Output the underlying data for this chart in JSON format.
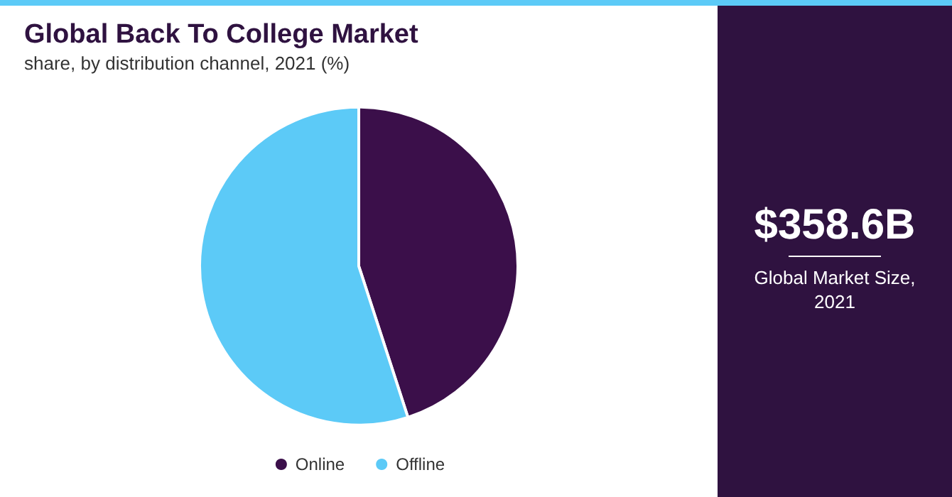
{
  "chart_data": {
    "type": "pie",
    "title": "Global Back To College Market",
    "subtitle": "share, by distribution channel, 2021 (%)",
    "categories": [
      "Online",
      "Offline"
    ],
    "values": [
      45,
      55
    ],
    "colors": [
      "#3b0f4a",
      "#5ccaf7"
    ],
    "legend": "bottom",
    "annotations": [
      "$358.6B",
      "Global Market Size, 2021"
    ]
  }
}
